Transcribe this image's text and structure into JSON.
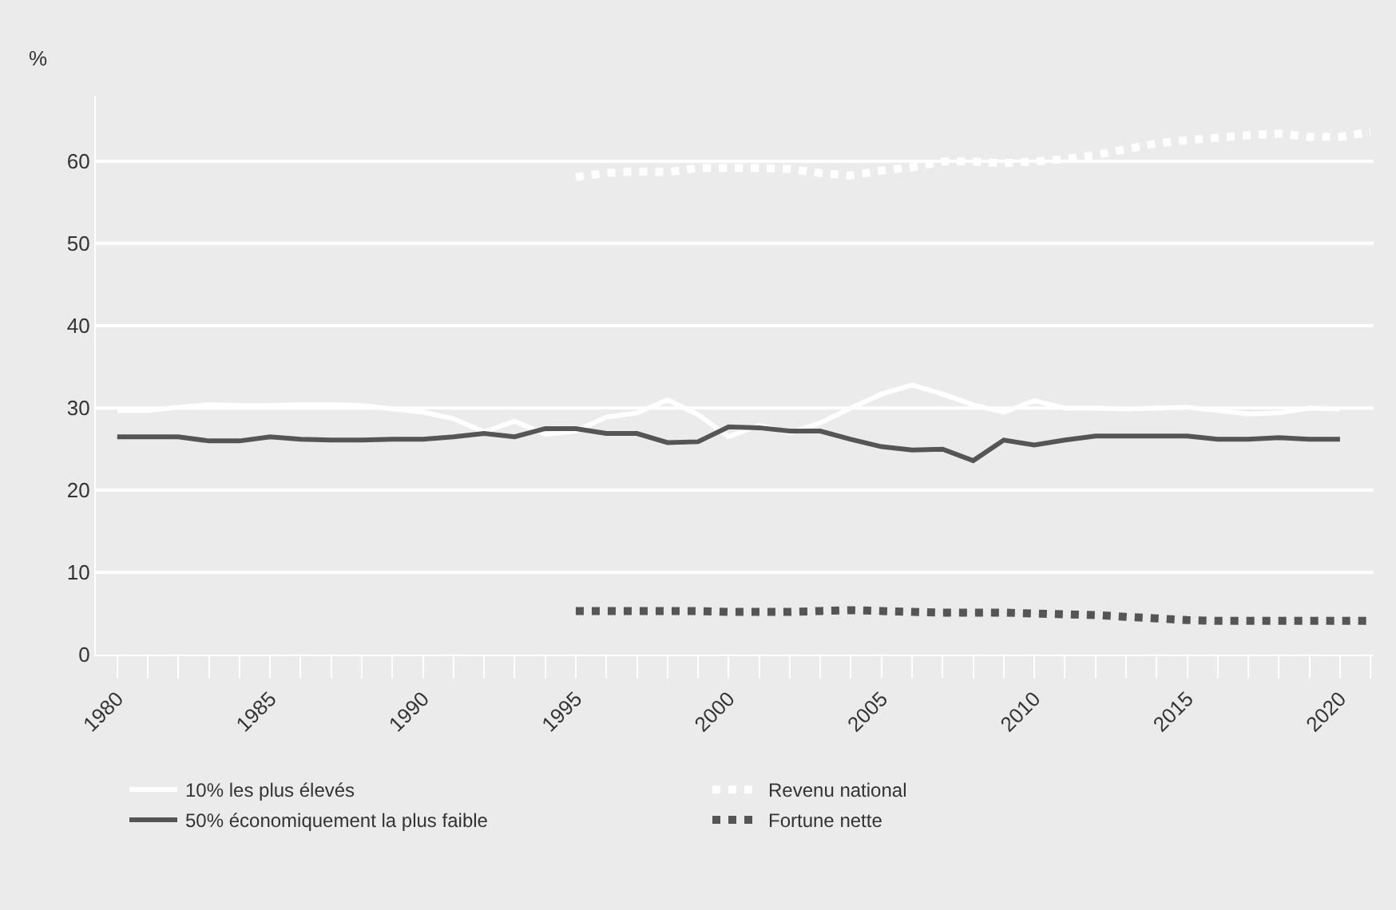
{
  "chart_data": {
    "type": "line",
    "ylabel": "%",
    "xlim": [
      1979.3,
      2021.1
    ],
    "ylim": [
      0,
      68
    ],
    "yticks": [
      0,
      10,
      20,
      30,
      40,
      50,
      60
    ],
    "xticks": [
      1980,
      {
        "value": 1981,
        "label": null
      },
      {
        "value": 1982,
        "label": null
      },
      {
        "value": 1983,
        "label": null
      },
      {
        "value": 1984,
        "label": null
      },
      1985,
      {
        "value": 1986,
        "label": null
      },
      {
        "value": 1987,
        "label": null
      },
      {
        "value": 1988,
        "label": null
      },
      {
        "value": 1989,
        "label": null
      },
      1990,
      {
        "value": 1991,
        "label": null
      },
      {
        "value": 1992,
        "label": null
      },
      {
        "value": 1993,
        "label": null
      },
      {
        "value": 1994,
        "label": null
      },
      1995,
      {
        "value": 1996,
        "label": null
      },
      {
        "value": 1997,
        "label": null
      },
      {
        "value": 1998,
        "label": null
      },
      {
        "value": 1999,
        "label": null
      },
      2000,
      {
        "value": 2001,
        "label": null
      },
      {
        "value": 2002,
        "label": null
      },
      {
        "value": 2003,
        "label": null
      },
      {
        "value": 2004,
        "label": null
      },
      2005,
      {
        "value": 2006,
        "label": null
      },
      {
        "value": 2007,
        "label": null
      },
      {
        "value": 2008,
        "label": null
      },
      {
        "value": 2009,
        "label": null
      },
      2010,
      {
        "value": 2011,
        "label": null
      },
      {
        "value": 2012,
        "label": null
      },
      {
        "value": 2013,
        "label": null
      },
      {
        "value": 2014,
        "label": null
      },
      2015,
      {
        "value": 2016,
        "label": null
      },
      {
        "value": 2017,
        "label": null
      },
      {
        "value": 2018,
        "label": null
      },
      {
        "value": 2019,
        "label": null
      },
      2020,
      {
        "value": 2021,
        "label": null
      }
    ],
    "grid": "y",
    "legend": "bottom",
    "series": [
      {
        "name": "10% les plus élevés",
        "color": "#ffffff",
        "line_style": "solid",
        "x": [
          1980,
          1981,
          1982,
          1983,
          1984,
          1985,
          1986,
          1987,
          1988,
          1989,
          1990,
          1991,
          1992,
          1993,
          1994,
          1995,
          1996,
          1997,
          1998,
          1999,
          2000,
          2001,
          2002,
          2003,
          2004,
          2005,
          2006,
          2007,
          2008,
          2009,
          2010,
          2011,
          2012,
          2013,
          2014,
          2015,
          2016,
          2017,
          2018,
          2019,
          2020
        ],
        "values": [
          29.7,
          29.7,
          30.1,
          30.4,
          30.3,
          30.3,
          30.4,
          30.4,
          30.3,
          29.9,
          29.5,
          28.7,
          27.1,
          28.4,
          26.8,
          27.2,
          28.9,
          29.4,
          31.0,
          29.2,
          26.5,
          27.9,
          27.0,
          28.2,
          30.0,
          31.7,
          32.8,
          31.7,
          30.4,
          29.5,
          30.9,
          30.0,
          30.0,
          29.9,
          30.0,
          30.1,
          29.7,
          29.3,
          29.4,
          30.0,
          29.9
        ]
      },
      {
        "name": "Revenu national",
        "color": "#ffffff",
        "line_style": "dotted",
        "x": [
          1995,
          1996,
          1997,
          1998,
          1999,
          2000,
          2001,
          2002,
          2003,
          2004,
          2005,
          2006,
          2007,
          2008,
          2009,
          2010,
          2011,
          2012,
          2013,
          2014,
          2015,
          2016,
          2017,
          2018,
          2019,
          2020,
          2021
        ],
        "values": [
          58.1,
          58.6,
          58.8,
          58.7,
          59.2,
          59.2,
          59.2,
          59.1,
          58.6,
          58.3,
          58.9,
          59.3,
          60.0,
          60.0,
          59.8,
          60.0,
          60.3,
          60.8,
          61.5,
          62.2,
          62.6,
          62.9,
          63.2,
          63.4,
          63.0,
          63.0,
          63.6
        ]
      },
      {
        "name": "50% économiquement la plus faible",
        "color": "#555555",
        "line_style": "solid",
        "x": [
          1980,
          1981,
          1982,
          1983,
          1984,
          1985,
          1986,
          1987,
          1988,
          1989,
          1990,
          1991,
          1992,
          1993,
          1994,
          1995,
          1996,
          1997,
          1998,
          1999,
          2000,
          2001,
          2002,
          2003,
          2004,
          2005,
          2006,
          2007,
          2008,
          2009,
          2010,
          2011,
          2012,
          2013,
          2014,
          2015,
          2016,
          2017,
          2018,
          2019,
          2020
        ],
        "values": [
          26.5,
          26.5,
          26.5,
          26.0,
          26.0,
          26.5,
          26.2,
          26.1,
          26.1,
          26.2,
          26.2,
          26.5,
          26.9,
          26.5,
          27.5,
          27.5,
          26.9,
          26.9,
          25.8,
          25.9,
          27.7,
          27.6,
          27.2,
          27.2,
          26.2,
          25.3,
          24.9,
          25.0,
          23.6,
          26.1,
          25.5,
          26.1,
          26.6,
          26.6,
          26.6,
          26.6,
          26.2,
          26.2,
          26.4,
          26.2,
          26.2
        ]
      },
      {
        "name": "Fortune nette",
        "color": "#555555",
        "line_style": "dotted",
        "x": [
          1995,
          1996,
          1997,
          1998,
          1999,
          2000,
          2001,
          2002,
          2003,
          2004,
          2005,
          2006,
          2007,
          2008,
          2009,
          2010,
          2011,
          2012,
          2013,
          2014,
          2015,
          2016,
          2017,
          2018,
          2019,
          2020,
          2021
        ],
        "values": [
          5.3,
          5.3,
          5.3,
          5.3,
          5.3,
          5.2,
          5.2,
          5.2,
          5.3,
          5.4,
          5.3,
          5.2,
          5.1,
          5.1,
          5.1,
          5.0,
          4.9,
          4.8,
          4.6,
          4.4,
          4.2,
          4.1,
          4.1,
          4.1,
          4.1,
          4.1,
          4.1
        ]
      }
    ]
  }
}
